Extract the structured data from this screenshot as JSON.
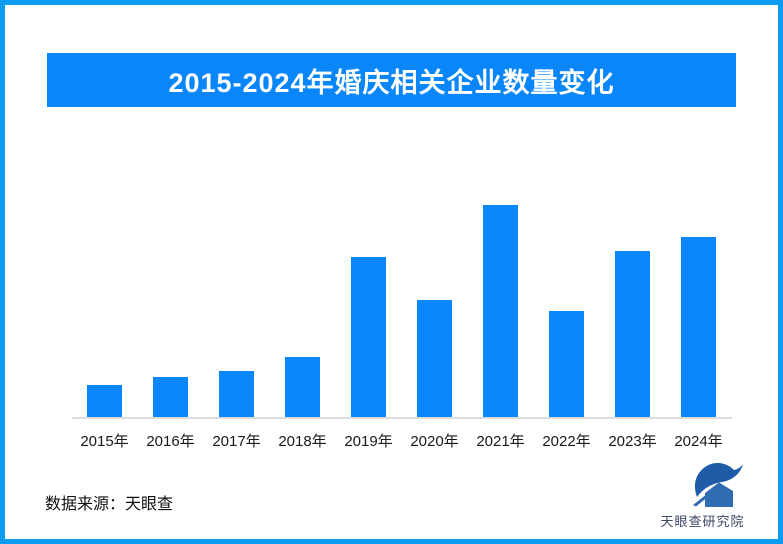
{
  "frame": {
    "border_color": "#0C9CF2",
    "background_color": "#FFFFFF"
  },
  "banner": {
    "title": "2015-2024年婚庆相关企业数量变化",
    "bg_color": "#0886FA",
    "text_color": "#FFFFFF"
  },
  "chart_data": {
    "type": "bar",
    "title": "2015-2024年婚庆相关企业数量变化",
    "categories": [
      "2015年",
      "2016年",
      "2017年",
      "2018年",
      "2019年",
      "2020年",
      "2021年",
      "2022年",
      "2023年",
      "2024年"
    ],
    "values": [
      32,
      40,
      46,
      60,
      160,
      117,
      212,
      106,
      166,
      180
    ],
    "xlabel": "",
    "ylabel": "",
    "ylim": [
      0,
      230
    ],
    "grid": false,
    "legend": false,
    "value_labels_shown": false,
    "y_axis_shown": false,
    "bar_color": "#0886FA",
    "axis_line_color": "#DDDDDD",
    "tick_label_color": "#1A1A1A"
  },
  "footer": {
    "source_text": "数据来源：天眼查",
    "logo": {
      "text": "天眼查研究院",
      "mark_color": "#1E5CA8",
      "house_color": "#2F6CB3",
      "text_color": "#3A4664"
    }
  }
}
